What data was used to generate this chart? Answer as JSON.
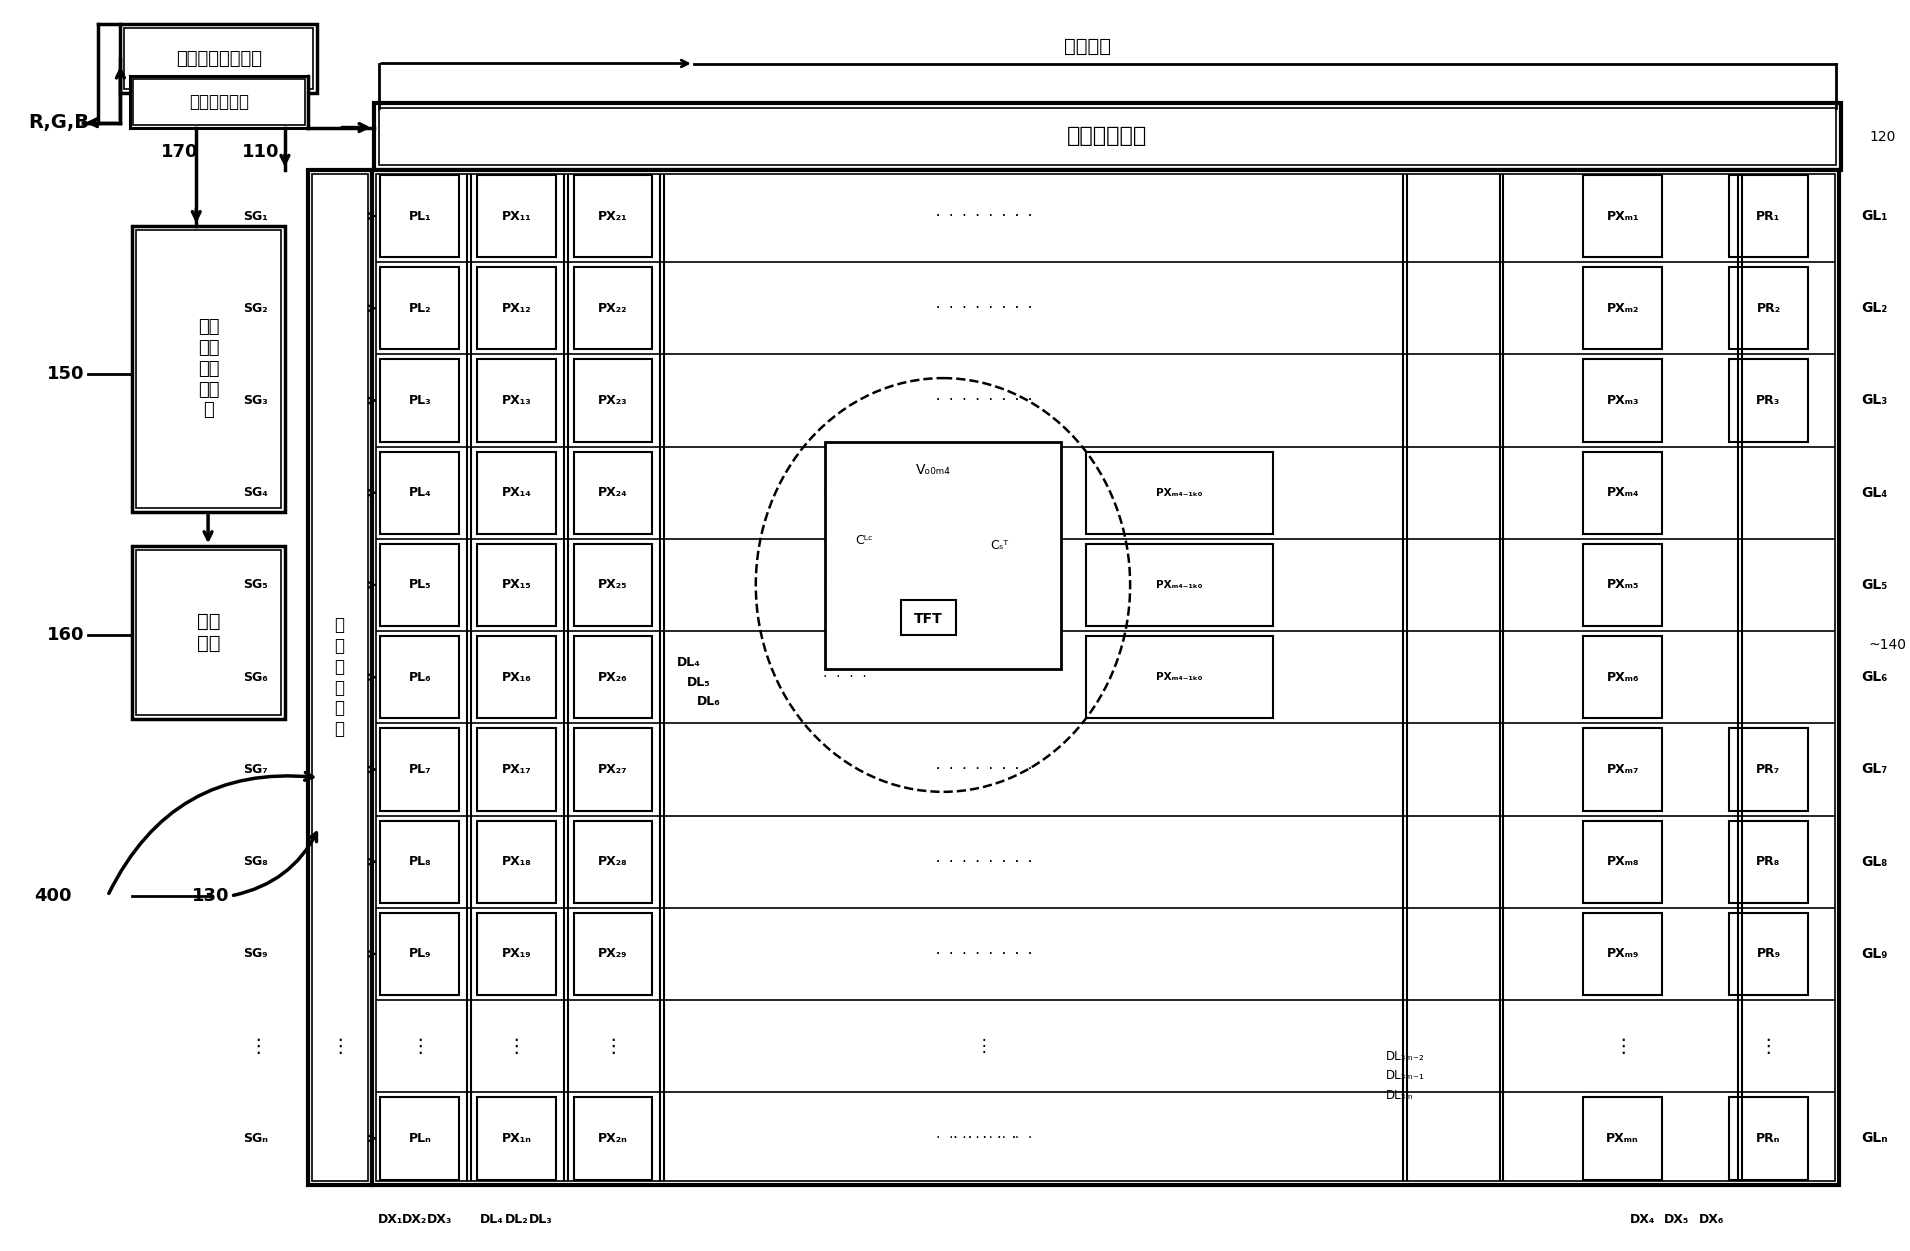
{
  "bg_color": "#ffffff",
  "lc": "#000000",
  "fig_w": 19.1,
  "fig_h": 12.51,
  "main_area_text": "主动区域",
  "data_driver_text": "数据驱动单元",
  "color_timing_text": "色序时间控制电路",
  "data_conv_text": "数据转换电路",
  "led_driver_text": "发光\n二极\n管驱\n动单\n元",
  "backlight_text": "背光\n模组",
  "scan_driver_text": "扫\n描\n驱\n动\n单\n元",
  "labels_170": "170",
  "labels_110": "110",
  "labels_150": "150",
  "labels_160": "160",
  "labels_400": "400",
  "labels_130": "130",
  "labels_120": "120",
  "labels_140": "~140",
  "labels_rgb": "R,G,B",
  "scan_rows": [
    "SG₁",
    "SG₂",
    "SG₃",
    "SG₄",
    "SG₅",
    "SG₆",
    "SG₇",
    "SG₈",
    "SG₉",
    "SGₙ"
  ],
  "gl_rows": [
    "GL₁",
    "GL₂",
    "GL₃",
    "GL₄",
    "GL₅",
    "GL₆",
    "GL₇",
    "GL₈",
    "GL₉",
    "GLₙ"
  ],
  "pl_cells": [
    "PL₁",
    "PL₂",
    "PL₃",
    "PL₄",
    "PL₅",
    "PL₆",
    "PL₇",
    "PL₈",
    "PL₉",
    "PLₙ"
  ],
  "px1_cells": [
    "PX₁₁",
    "PX₁₂",
    "PX₁₃",
    "PX₁₄",
    "PX₁₅",
    "PX₁₆",
    "PX₁₇",
    "PX₁₈",
    "PX₁₉",
    "PX₁ₙ"
  ],
  "px2_cells": [
    "PX₂₁",
    "PX₂₂",
    "PX₂₃",
    "PX₂₄",
    "PX₂₅",
    "PX₂₆",
    "PX₂₇",
    "PX₂₈",
    "PX₂₉",
    "PX₂ₙ"
  ],
  "pxm_cells": [
    "PXₘ₁",
    "PXₘ₂",
    "PXₘ₃",
    "PXₘ₄₋₁ₖ₀",
    "PXₘ₄₋₁ₖ₀",
    "PXₘ₄₋₁ₖ₀",
    "PXₘ₇",
    "PXₘ₈",
    "PXₘ₉",
    "PXₘₙ"
  ],
  "pr_cells": [
    "PR₁",
    "PR₂",
    "PR₃",
    "",
    "",
    "",
    "PR₇",
    "PR₈",
    "PR₉",
    "PRₙ"
  ],
  "pxm4_text": "PXₘ₄₋₁ₖ₀",
  "pxm5_text": "PXₘ₄₋₁ₖ₀",
  "pxm6_text": "PXₘ₄₋₁ₖ₀",
  "dl_bottom": [
    "DX₁",
    "DX₂",
    "DX₃",
    "DL₄",
    "DL₂",
    "DL₃"
  ],
  "dl_right_bottom": [
    "DX₄",
    "DX₅",
    "DX₆"
  ],
  "dl_3m_labels": [
    "DL₃ₘ₋₂",
    "DL₃ₘ₋₁",
    "DL₃ₘ"
  ]
}
